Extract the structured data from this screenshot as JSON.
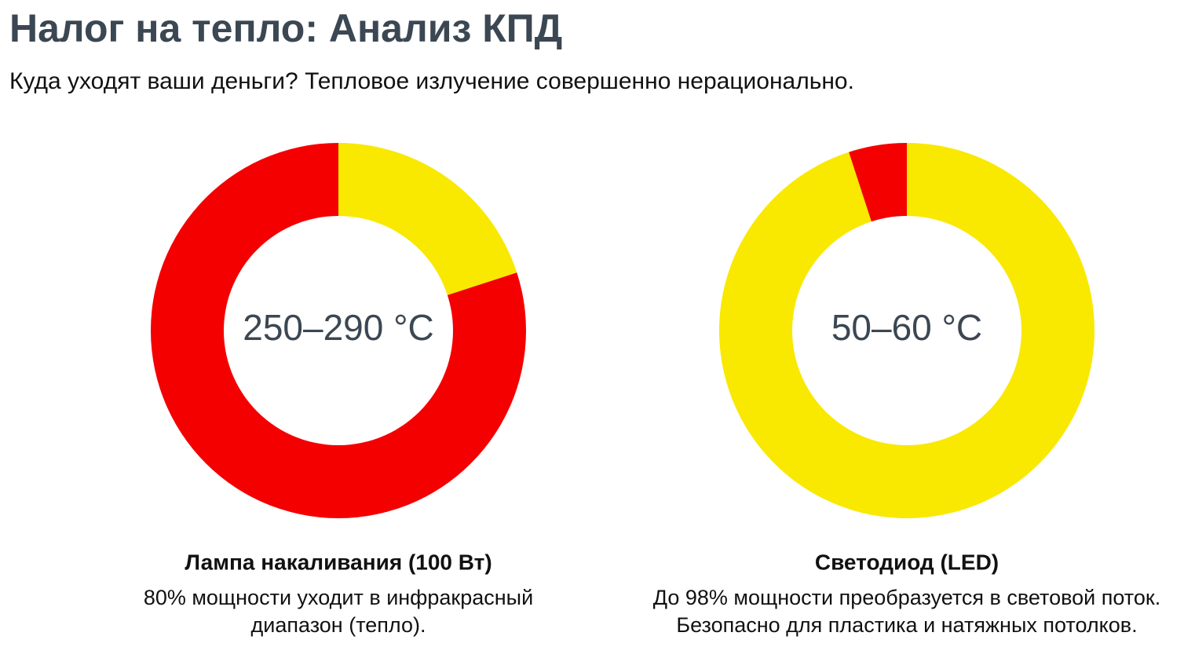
{
  "header": {
    "title": "Налог на тепло: Анализ КПД",
    "subtitle": "Куда уходят ваши деньги? Тепловое излучение совершенно нерационально."
  },
  "chart_data": [
    {
      "type": "pie",
      "values": [
        20,
        80
      ],
      "colors": [
        "#f9e800",
        "#f50000"
      ],
      "center_label": "250–290 °C",
      "title": "Лампа накаливания (100 Вт)",
      "caption": [
        "80% мощности уходит в инфракрасный",
        "диапазон (тепло)."
      ]
    },
    {
      "type": "pie",
      "values": [
        95,
        5
      ],
      "colors": [
        "#f9e800",
        "#f50000"
      ],
      "center_label": "50–60 °C",
      "title": "Светодиод (LED)",
      "caption": [
        "До 98% мощности преобразуется в световой поток.",
        "Безопасно для пластика и натяжных потолков."
      ]
    }
  ]
}
